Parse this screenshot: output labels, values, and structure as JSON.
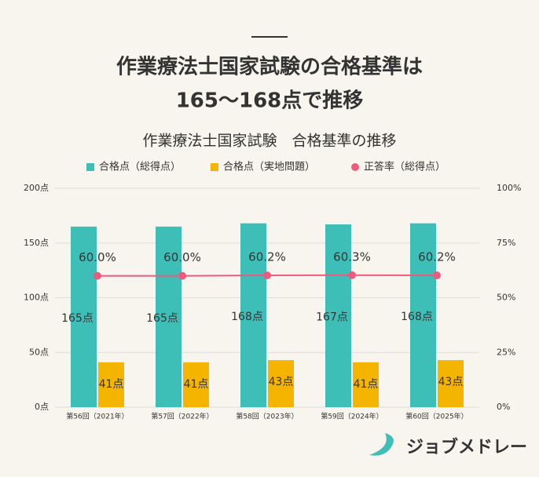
{
  "headline": [
    "作業療法士国家試験の合格基準は",
    "165～168点で推移"
  ],
  "logo": "ジョブメドレー",
  "chart_data": {
    "type": "bar",
    "title": "作業療法士国家試験　合格基準の推移",
    "categories": [
      "第56回（2021年）",
      "第57回（2022年）",
      "第58回（2023年）",
      "第59回（2024年）",
      "第60回（2025年）"
    ],
    "series": [
      {
        "name": "合格点（総得点）",
        "color": "#3dbfb8",
        "values": [
          165,
          165,
          168,
          167,
          168
        ],
        "value_labels": [
          "165点",
          "165点",
          "168点",
          "167点",
          "168点"
        ]
      },
      {
        "name": "合格点（実地問題）",
        "color": "#f5b400",
        "values": [
          41,
          41,
          43,
          41,
          43
        ],
        "value_labels": [
          "41点",
          "41点",
          "43点",
          "41点",
          "43点"
        ]
      },
      {
        "name": "正答率（総得点）",
        "color": "#ec5b7c",
        "type": "line",
        "axis": "y2",
        "values": [
          60.0,
          60.0,
          60.2,
          60.3,
          60.2
        ],
        "value_labels": [
          "60.0%",
          "60.0%",
          "60.2%",
          "60.3%",
          "60.2%"
        ]
      }
    ],
    "ylim": [
      0,
      200
    ],
    "yticks": [
      {
        "value": 0,
        "label": "0点"
      },
      {
        "value": 50,
        "label": "50点"
      },
      {
        "value": 100,
        "label": "100点"
      },
      {
        "value": 150,
        "label": "150点"
      },
      {
        "value": 200,
        "label": "200点"
      }
    ],
    "y2lim": [
      0,
      100
    ],
    "y2ticks": [
      {
        "value": 0,
        "label": "0%"
      },
      {
        "value": 25,
        "label": "25%"
      },
      {
        "value": 50,
        "label": "50%"
      },
      {
        "value": 75,
        "label": "75%"
      },
      {
        "value": 100,
        "label": "100%"
      }
    ],
    "grid": true
  }
}
